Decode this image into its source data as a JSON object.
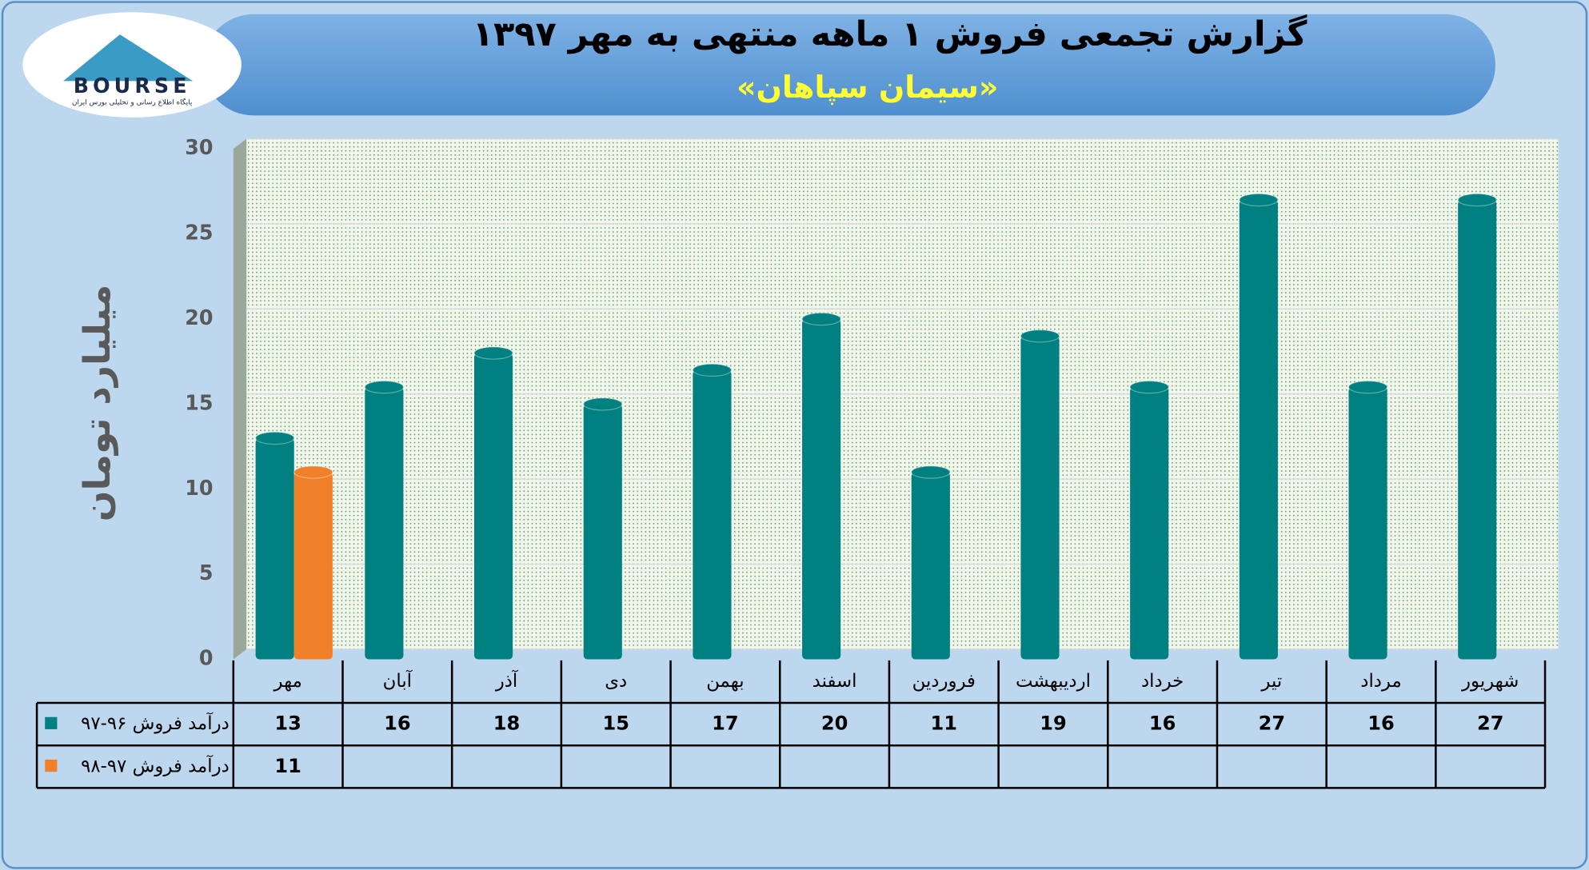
{
  "logo": {
    "text": "BOURSE",
    "tagline": "پایگاه اطلاع رسانی و تحلیلی بورس ایران"
  },
  "chart_data": {
    "type": "bar",
    "title": "گزارش تجمعی فروش ۱ ماهه منتهی به مهر ۱۳۹۷",
    "subtitle": "«سیمان سپاهان»",
    "y_label": "میلیارد تومان",
    "categories": [
      "مهر",
      "آبان",
      "آذر",
      "دی",
      "بهمن",
      "اسفند",
      "فروردین",
      "اردیبهشت",
      "خرداد",
      "تیر",
      "مرداد",
      "شهریور"
    ],
    "series": [
      {
        "name": "درآمد فروش ۹۶-۹۷",
        "color": "#008080",
        "values": [
          13,
          16,
          18,
          15,
          17,
          20,
          11,
          19,
          16,
          27,
          16,
          27
        ]
      },
      {
        "name": "درآمد فروش ۹۷-۹۸",
        "color": "#f0802a",
        "values": [
          11,
          null,
          null,
          null,
          null,
          null,
          null,
          null,
          null,
          null,
          null,
          null
        ]
      }
    ],
    "ylim": [
      0,
      30
    ],
    "yticks": [
      0,
      5,
      10,
      15,
      20,
      25,
      30
    ],
    "grid": true
  }
}
